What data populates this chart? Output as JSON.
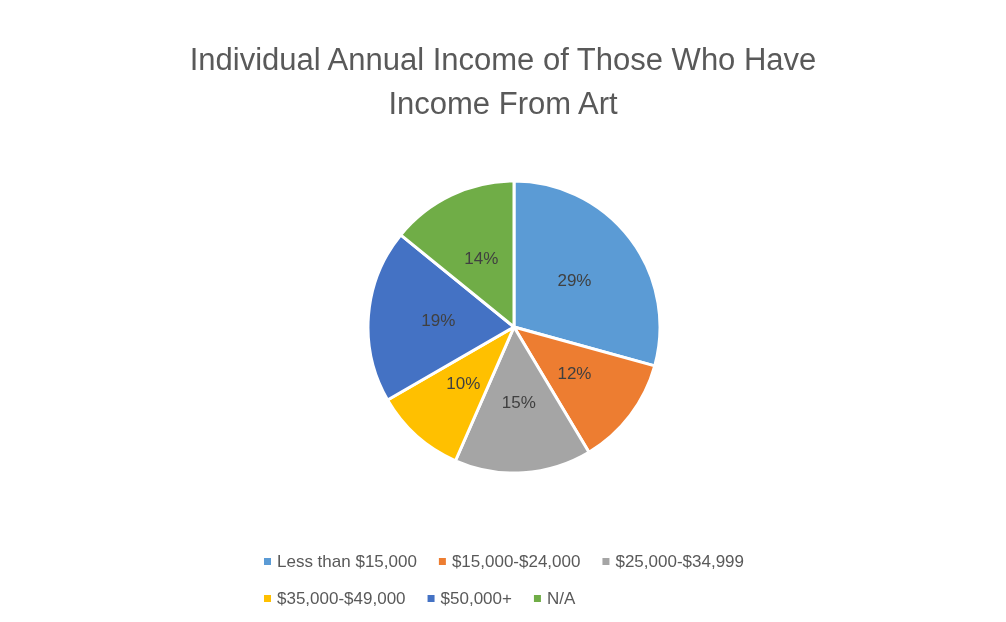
{
  "chart_data": {
    "type": "pie",
    "title": "Individual Annual Income of Those Who Have\nIncome From Art",
    "categories": [
      "Less than $15,000",
      "$15,000-$24,000",
      "$25,000-$34,999",
      "$35,000-$49,000",
      "$50,000+",
      "N/A"
    ],
    "values": [
      29,
      12,
      15,
      10,
      19,
      14
    ],
    "value_labels": [
      "29%",
      "12%",
      "15%",
      "10%",
      "19%",
      "14%"
    ],
    "colors": [
      "#5b9bd5",
      "#ed7d31",
      "#a5a5a5",
      "#ffc000",
      "#4472c4",
      "#70ad47"
    ],
    "legend": "bottom"
  }
}
